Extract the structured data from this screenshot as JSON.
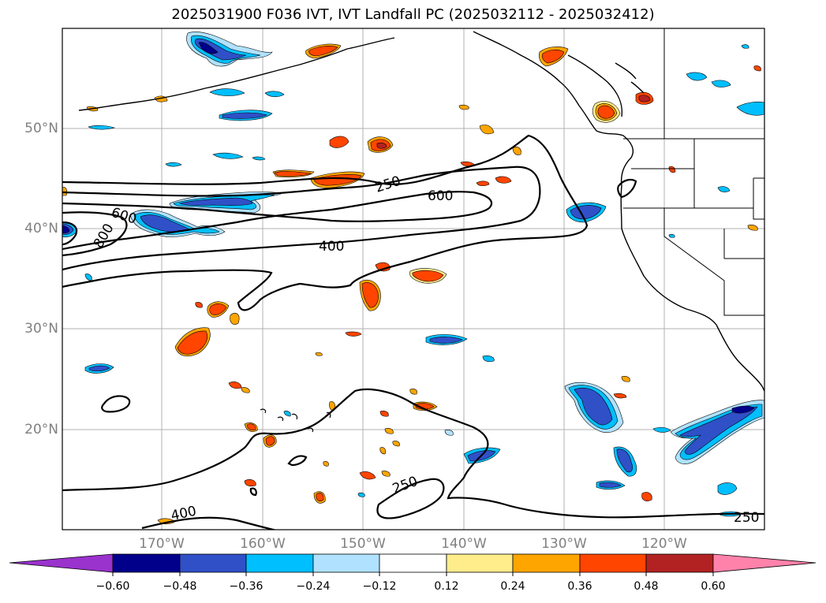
{
  "title": "2025031900 F036 IVT, IVT Landfall PC (2025032112 - 2025032412)",
  "axes": {
    "lat_labels": [
      "50°N",
      "40°N",
      "30°N",
      "20°N"
    ],
    "lon_labels": [
      "170°W",
      "160°W",
      "150°W",
      "140°W",
      "130°W",
      "120°W"
    ]
  },
  "contour_labels": [
    "250",
    "600",
    "600",
    "800",
    "400",
    "250",
    "400",
    "250"
  ],
  "colorbar": {
    "ticks": [
      "−0.60",
      "−0.48",
      "−0.36",
      "−0.24",
      "−0.12",
      "0.12",
      "0.24",
      "0.36",
      "0.48",
      "0.60"
    ],
    "colors": [
      "#9a32cd",
      "#00008b",
      "#3050c8",
      "#00bfff",
      "#b0e2ff",
      "#ffffff",
      "#ffec8b",
      "#ffa500",
      "#ff4500",
      "#b22222",
      "#ff82ab"
    ]
  }
}
